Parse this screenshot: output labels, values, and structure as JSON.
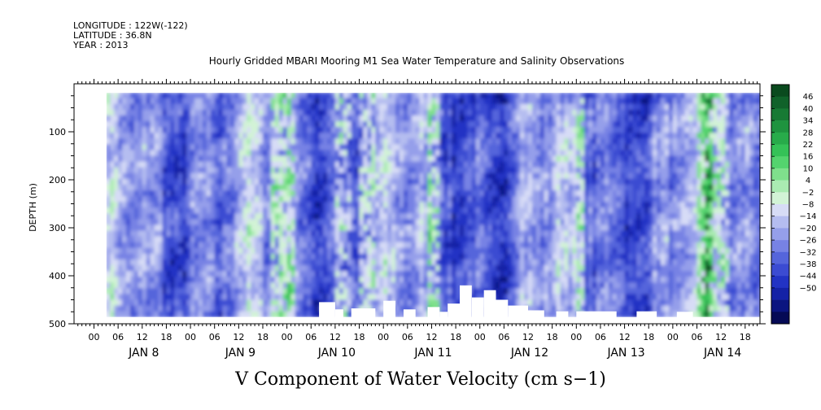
{
  "header": {
    "longitude": "LONGITUDE : 122W(-122)",
    "latitude": "LATITUDE : 36.8N",
    "year": "YEAR : 2013"
  },
  "chart_data": {
    "type": "heatmap",
    "title": "Hourly Gridded MBARI Mooring M1 Sea Water Temperature and Salinity Observations",
    "xlabel": "V Component of Water Velocity (cm s−1)",
    "ylabel": "DEPTH (m)",
    "y_ticks": [
      "100",
      "200",
      "300",
      "400",
      "500"
    ],
    "ylim": [
      500,
      0
    ],
    "hour_ticks": [
      "00",
      "06",
      "12",
      "18",
      "00",
      "06",
      "12",
      "18",
      "00",
      "06",
      "12",
      "18",
      "00",
      "06",
      "12",
      "18",
      "00",
      "06",
      "12",
      "18",
      "00",
      "06",
      "12",
      "18",
      "00",
      "06",
      "12",
      "18"
    ],
    "day_labels": [
      "JAN  8",
      "JAN  9",
      "JAN 10",
      "JAN 11",
      "JAN 12",
      "JAN 13",
      "JAN 14"
    ],
    "colorbar_labels": [
      "46",
      "40",
      "34",
      "28",
      "22",
      "16",
      "10",
      "4",
      "−2",
      "−8",
      "−14",
      "−20",
      "−26",
      "−32",
      "−38",
      "−44",
      "−50"
    ],
    "colorbar_colors": [
      "#0a4a1e",
      "#10622a",
      "#177a34",
      "#1f933f",
      "#28ab4a",
      "#35c257",
      "#54d46e",
      "#7fe08c",
      "#aaebb2",
      "#d2f3d6",
      "#d7dcf6",
      "#b5bdf0",
      "#959fea",
      "#7782e4",
      "#5565db",
      "#3b4bd2",
      "#2233c4",
      "#1422a6",
      "#0b1580",
      "#050a55"
    ],
    "colorbar_range": [
      -50,
      50
    ],
    "data_x_range_hours": [
      3,
      187
    ],
    "data_depth_range": [
      18,
      486
    ]
  }
}
